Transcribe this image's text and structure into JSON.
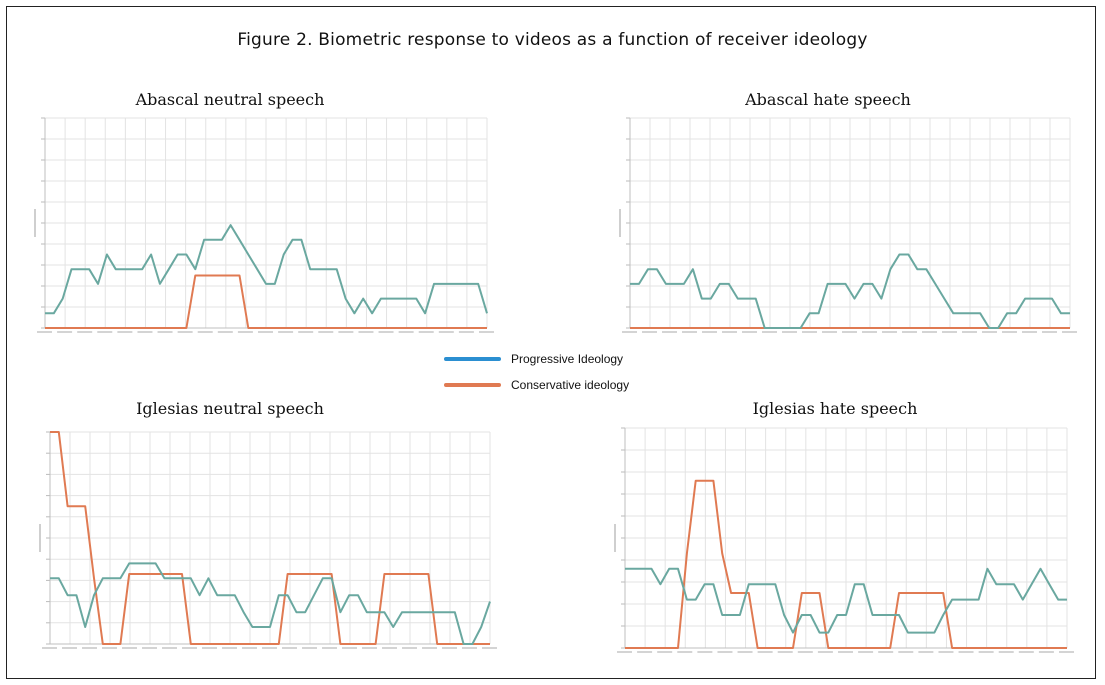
{
  "figure_title": "Figure 2. Biometric response to videos as a function of receiver ideology",
  "colors": {
    "progressive": "#2b8fd1",
    "conservative": "#e07a52",
    "overlap": "#6aa8a0",
    "grid": "#e3e3e3"
  },
  "legend": [
    {
      "label": "Progressive Ideology",
      "color": "#2b8fd1"
    },
    {
      "label": "Conservative ideology",
      "color": "#e07a52"
    }
  ],
  "chart_data": [
    {
      "type": "line",
      "title": "Abascal neutral speech",
      "ylim": [
        0,
        10
      ],
      "grid": true,
      "series": [
        {
          "name": "Progressive Ideology",
          "values": [
            0.7,
            0.7,
            1.4,
            2.8,
            2.8,
            2.8,
            2.1,
            3.5,
            2.8,
            2.8,
            2.8,
            2.8,
            3.5,
            2.1,
            2.8,
            3.5,
            3.5,
            2.8,
            4.2,
            4.2,
            4.2,
            4.9,
            4.2,
            3.5,
            2.8,
            2.1,
            2.1,
            3.5,
            4.2,
            4.2,
            2.8,
            2.8,
            2.8,
            2.8,
            1.4,
            0.7,
            1.4,
            0.7,
            1.4,
            1.4,
            1.4,
            1.4,
            1.4,
            0.7,
            2.1,
            2.1,
            2.1,
            2.1,
            2.1,
            2.1,
            0.7
          ]
        },
        {
          "name": "Conservative ideology",
          "values": [
            0,
            0,
            0,
            0,
            0,
            0,
            0,
            0,
            0,
            0,
            0,
            0,
            0,
            0,
            0,
            0,
            0,
            2.5,
            2.5,
            2.5,
            2.5,
            2.5,
            2.5,
            0,
            0,
            0,
            0,
            0,
            0,
            0,
            0,
            0,
            0,
            0,
            0,
            0,
            0,
            0,
            0,
            0,
            0,
            0,
            0,
            0,
            0,
            0,
            0,
            0,
            0,
            0,
            0
          ]
        }
      ]
    },
    {
      "type": "line",
      "title": "Abascal hate speech",
      "ylim": [
        0,
        10
      ],
      "grid": true,
      "series": [
        {
          "name": "Progressive Ideology",
          "values": [
            2.1,
            2.1,
            2.8,
            2.8,
            2.1,
            2.1,
            2.1,
            2.8,
            1.4,
            1.4,
            2.1,
            2.1,
            1.4,
            1.4,
            1.4,
            0,
            0,
            0,
            0,
            0,
            0.7,
            0.7,
            2.1,
            2.1,
            2.1,
            1.4,
            2.1,
            2.1,
            1.4,
            2.8,
            3.5,
            3.5,
            2.8,
            2.8,
            2.1,
            1.4,
            0.7,
            0.7,
            0.7,
            0.7,
            0,
            0,
            0.7,
            0.7,
            1.4,
            1.4,
            1.4,
            1.4,
            0.7,
            0.7
          ]
        },
        {
          "name": "Conservative ideology",
          "values": [
            0,
            0,
            0,
            0,
            0,
            0,
            0,
            0,
            0,
            0,
            0,
            0,
            0,
            0,
            0,
            0,
            0,
            0,
            0,
            0,
            0,
            0,
            0,
            0,
            0,
            0,
            0,
            0,
            0,
            0,
            0,
            0,
            0,
            0,
            0,
            0,
            0,
            0,
            0,
            0,
            0,
            0,
            0,
            0,
            0,
            0,
            0,
            0,
            0,
            0
          ]
        }
      ]
    },
    {
      "type": "line",
      "title": "Iglesias neutral speech",
      "ylim": [
        0,
        10
      ],
      "grid": true,
      "series": [
        {
          "name": "Progressive Ideology",
          "values": [
            3.1,
            3.1,
            2.3,
            2.3,
            0.8,
            2.3,
            3.1,
            3.1,
            3.1,
            3.8,
            3.8,
            3.8,
            3.8,
            3.1,
            3.1,
            3.1,
            3.1,
            2.3,
            3.1,
            2.3,
            2.3,
            2.3,
            1.5,
            0.8,
            0.8,
            0.8,
            2.3,
            2.3,
            1.5,
            1.5,
            2.3,
            3.1,
            3.1,
            1.5,
            2.3,
            2.3,
            1.5,
            1.5,
            1.5,
            0.8,
            1.5,
            1.5,
            1.5,
            1.5,
            1.5,
            1.5,
            1.5,
            0,
            0,
            0.8,
            2.0
          ]
        },
        {
          "name": "Conservative ideology",
          "values": [
            10,
            10,
            6.5,
            6.5,
            6.5,
            3.1,
            0,
            0,
            0,
            3.3,
            3.3,
            3.3,
            3.3,
            3.3,
            3.3,
            3.3,
            0,
            0,
            0,
            0,
            0,
            0,
            0,
            0,
            0,
            0,
            0,
            3.3,
            3.3,
            3.3,
            3.3,
            3.3,
            3.3,
            0,
            0,
            0,
            0,
            0,
            3.3,
            3.3,
            3.3,
            3.3,
            3.3,
            3.3,
            0,
            0,
            0,
            0,
            0,
            0,
            0
          ]
        }
      ]
    },
    {
      "type": "line",
      "title": "Iglesias hate speech",
      "ylim": [
        0,
        10
      ],
      "grid": true,
      "series": [
        {
          "name": "Progressive Ideology",
          "values": [
            3.6,
            3.6,
            3.6,
            3.6,
            2.9,
            3.6,
            3.6,
            2.2,
            2.2,
            2.9,
            2.9,
            1.5,
            1.5,
            1.5,
            2.9,
            2.9,
            2.9,
            2.9,
            1.5,
            0.7,
            1.5,
            1.5,
            0.7,
            0.7,
            1.5,
            1.5,
            2.9,
            2.9,
            1.5,
            1.5,
            1.5,
            1.5,
            0.7,
            0.7,
            0.7,
            0.7,
            1.5,
            2.2,
            2.2,
            2.2,
            2.2,
            3.6,
            2.9,
            2.9,
            2.9,
            2.2,
            2.9,
            3.6,
            2.9,
            2.2,
            2.2
          ]
        },
        {
          "name": "Conservative ideology",
          "values": [
            0,
            0,
            0,
            0,
            0,
            0,
            0,
            4.3,
            7.6,
            7.6,
            7.6,
            4.3,
            2.5,
            2.5,
            2.5,
            0,
            0,
            0,
            0,
            0,
            2.5,
            2.5,
            2.5,
            0,
            0,
            0,
            0,
            0,
            0,
            0,
            0,
            2.5,
            2.5,
            2.5,
            2.5,
            2.5,
            2.5,
            0,
            0,
            0,
            0,
            0,
            0,
            0,
            0,
            0,
            0,
            0,
            0,
            0,
            0
          ]
        }
      ]
    }
  ]
}
